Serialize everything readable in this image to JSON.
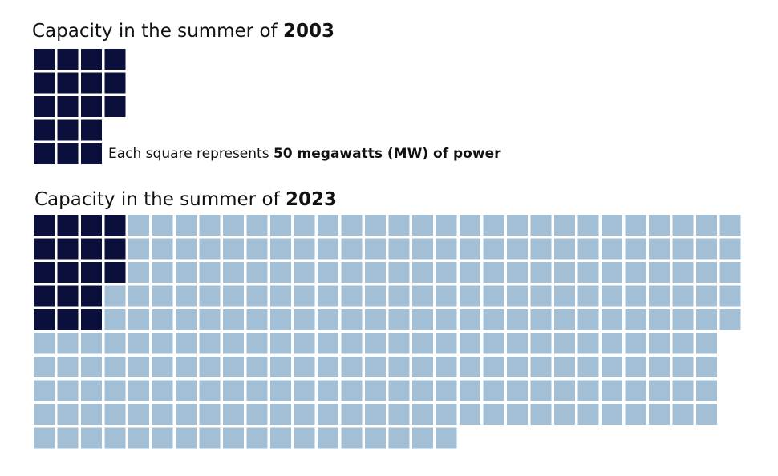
{
  "colors": {
    "existing": "#0b0f3c",
    "added": "#a3bfd6"
  },
  "legend": {
    "prefix": "Each square represents ",
    "emphasis": "50 megawatts (MW) of power"
  },
  "chart_data": [
    {
      "type": "waffle",
      "title_prefix": "Capacity in the summer of ",
      "title_year": "2003",
      "unit_mw": 50,
      "existing_squares": 18,
      "total_squares": 18
    },
    {
      "type": "waffle",
      "title_prefix": "Capacity in the summer of ",
      "title_year": "2023",
      "unit_mw": 50,
      "existing_squares": 18,
      "total_squares": 284
    }
  ]
}
